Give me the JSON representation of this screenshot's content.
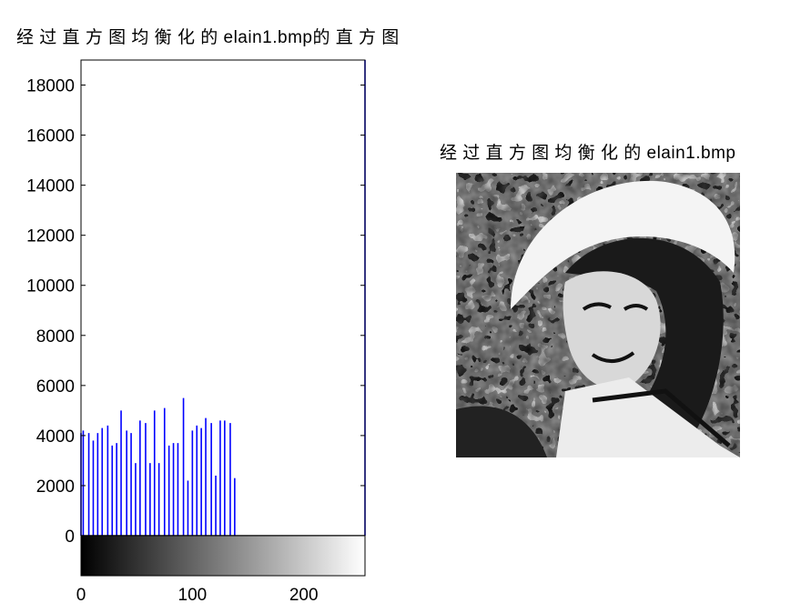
{
  "histogram_title": "经 过 直 方 图 均 衡 化 的 elain1.bmp的 直 方 图",
  "image_title": "经 过 直 方 图 均 衡 化 的 elain1.bmp",
  "colors": {
    "bars": "#0000ff",
    "axes": "#000000"
  },
  "chart_data": {
    "type": "bar",
    "title": "经 过 直 方 图 均 衡 化 的 elain1.bmp的 直 方 图",
    "xlim": [
      0,
      255
    ],
    "ylim": [
      0,
      19000
    ],
    "yticks": [
      0,
      2000,
      4000,
      6000,
      8000,
      10000,
      12000,
      14000,
      16000,
      18000
    ],
    "xticks": [
      0,
      100,
      200
    ],
    "colorbar": "grayscale 0-255 below x-axis",
    "x": [
      0,
      2,
      7,
      11,
      15,
      19,
      24,
      28,
      32,
      36,
      41,
      45,
      49,
      53,
      58,
      62,
      66,
      70,
      75,
      79,
      83,
      87,
      92,
      96,
      100,
      104,
      108,
      112,
      117,
      121,
      125,
      129,
      134,
      138,
      255
    ],
    "values": [
      4100,
      4200,
      4100,
      3800,
      4100,
      4300,
      4400,
      3600,
      3700,
      5000,
      4200,
      4100,
      2900,
      4600,
      4500,
      2900,
      5000,
      2900,
      5100,
      3600,
      3700,
      3700,
      5500,
      2200,
      4200,
      4400,
      4300,
      4700,
      4500,
      2400,
      4600,
      4600,
      4500,
      2300,
      19000
    ]
  }
}
